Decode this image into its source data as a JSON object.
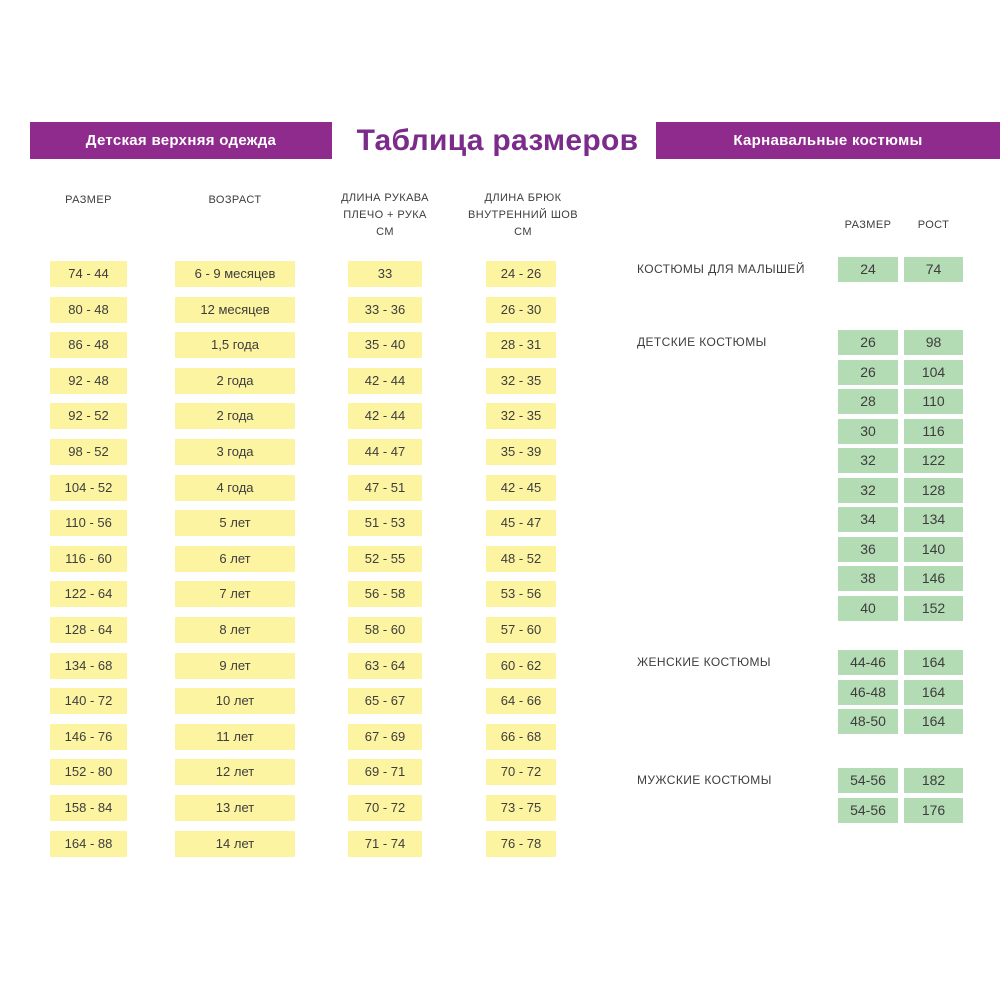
{
  "header": {
    "left_banner": "Детская верхняя одежда",
    "title": "Таблица размеров",
    "right_banner": "Карнавальные костюмы"
  },
  "colors": {
    "banner_purple": "#8e2b8d",
    "title_purple": "#7b2b8a",
    "cell_yellow": "#fcf4a1",
    "cell_green": "#b4dcb4",
    "text": "#3d3d3d"
  },
  "outerwear_table": {
    "columns": [
      "РАЗМЕР",
      "ВОЗРАСТ",
      "ДЛИНА РУКАВА\nПЛЕЧО + РУКА\nСМ",
      "ДЛИНА БРЮК\nВНУТРЕННИЙ ШОВ\nСМ"
    ],
    "rows": [
      {
        "size": "74 - 44",
        "age": "6 - 9 месяцев",
        "sleeve": "33",
        "pants": "24 - 26"
      },
      {
        "size": "80 - 48",
        "age": "12 месяцев",
        "sleeve": "33 - 36",
        "pants": "26 - 30"
      },
      {
        "size": "86 - 48",
        "age": "1,5 года",
        "sleeve": "35 - 40",
        "pants": "28 - 31"
      },
      {
        "size": "92 - 48",
        "age": "2 года",
        "sleeve": "42 - 44",
        "pants": "32 - 35"
      },
      {
        "size": "92 - 52",
        "age": "2 года",
        "sleeve": "42 - 44",
        "pants": "32 - 35"
      },
      {
        "size": "98 - 52",
        "age": "3 года",
        "sleeve": "44 - 47",
        "pants": "35 - 39"
      },
      {
        "size": "104 - 52",
        "age": "4 года",
        "sleeve": "47 - 51",
        "pants": "42 - 45"
      },
      {
        "size": "110 - 56",
        "age": "5 лет",
        "sleeve": "51 - 53",
        "pants": "45 - 47"
      },
      {
        "size": "116 - 60",
        "age": "6 лет",
        "sleeve": "52 - 55",
        "pants": "48 - 52"
      },
      {
        "size": "122 - 64",
        "age": "7 лет",
        "sleeve": "56 - 58",
        "pants": "53 - 56"
      },
      {
        "size": "128 - 64",
        "age": "8 лет",
        "sleeve": "58 - 60",
        "pants": "57 - 60"
      },
      {
        "size": "134 - 68",
        "age": "9 лет",
        "sleeve": "63 - 64",
        "pants": "60 - 62"
      },
      {
        "size": "140 - 72",
        "age": "10 лет",
        "sleeve": "65 - 67",
        "pants": "64 - 66"
      },
      {
        "size": "146 - 76",
        "age": "11 лет",
        "sleeve": "67 - 69",
        "pants": "66 - 68"
      },
      {
        "size": "152 - 80",
        "age": "12 лет",
        "sleeve": "69 - 71",
        "pants": "70 - 72"
      },
      {
        "size": "158 - 84",
        "age": "13 лет",
        "sleeve": "70 - 72",
        "pants": "73 - 75"
      },
      {
        "size": "164 - 88",
        "age": "14 лет",
        "sleeve": "71 - 74",
        "pants": "76 - 78"
      }
    ]
  },
  "costumes": {
    "col_headers": [
      "РАЗМЕР",
      "РОСТ"
    ],
    "groups": [
      {
        "label": "КОСТЮМЫ ДЛЯ МАЛЫШЕЙ",
        "rows": [
          [
            "24",
            "74"
          ]
        ]
      },
      {
        "label": "ДЕТСКИЕ КОСТЮМЫ",
        "rows": [
          [
            "26",
            "98"
          ],
          [
            "26",
            "104"
          ],
          [
            "28",
            "110"
          ],
          [
            "30",
            "116"
          ],
          [
            "32",
            "122"
          ],
          [
            "32",
            "128"
          ],
          [
            "34",
            "134"
          ],
          [
            "36",
            "140"
          ],
          [
            "38",
            "146"
          ],
          [
            "40",
            "152"
          ]
        ]
      },
      {
        "label": "ЖЕНСКИЕ КОСТЮМЫ",
        "rows": [
          [
            "44-46",
            "164"
          ],
          [
            "46-48",
            "164"
          ],
          [
            "48-50",
            "164"
          ]
        ]
      },
      {
        "label": "МУЖСКИЕ КОСТЮМЫ",
        "rows": [
          [
            "54-56",
            "182"
          ],
          [
            "54-56",
            "176"
          ]
        ]
      }
    ]
  }
}
